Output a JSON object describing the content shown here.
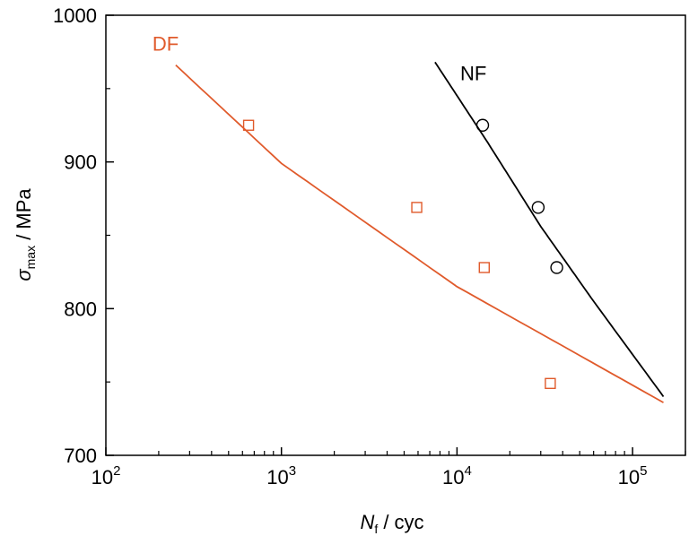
{
  "chart_data": {
    "type": "scatter",
    "x_scale": "log",
    "xlim": [
      100,
      200000
    ],
    "ylim": [
      700,
      1000
    ],
    "grid": false,
    "x_ticks": [
      {
        "value": 100,
        "base": "10",
        "exp": "2"
      },
      {
        "value": 1000,
        "base": "10",
        "exp": "3"
      },
      {
        "value": 10000,
        "base": "10",
        "exp": "4"
      },
      {
        "value": 100000,
        "base": "10",
        "exp": "5"
      }
    ],
    "y_ticks": [
      700,
      800,
      900,
      1000
    ],
    "xlabel": {
      "var": "N",
      "sub": "f",
      "rest": " / cyc"
    },
    "ylabel": {
      "var": "σ",
      "sub": "max",
      "rest": " / MPa"
    },
    "series": [
      {
        "name": "DF",
        "color": "#e05a2b",
        "marker": "square",
        "points": [
          [
            650,
            925
          ],
          [
            5900,
            869
          ],
          [
            14300,
            828
          ],
          [
            34000,
            749
          ]
        ],
        "fit_line": [
          [
            250,
            966
          ],
          [
            1000,
            899
          ],
          [
            10000,
            815
          ],
          [
            150000,
            736
          ]
        ]
      },
      {
        "name": "NF",
        "color": "#000000",
        "marker": "circle",
        "points": [
          [
            14000,
            925
          ],
          [
            29000,
            869
          ],
          [
            37000,
            828
          ]
        ],
        "fit_line": [
          [
            7500,
            968
          ],
          [
            15000,
            913
          ],
          [
            30000,
            856
          ],
          [
            60000,
            805
          ],
          [
            150000,
            740
          ]
        ]
      }
    ]
  }
}
